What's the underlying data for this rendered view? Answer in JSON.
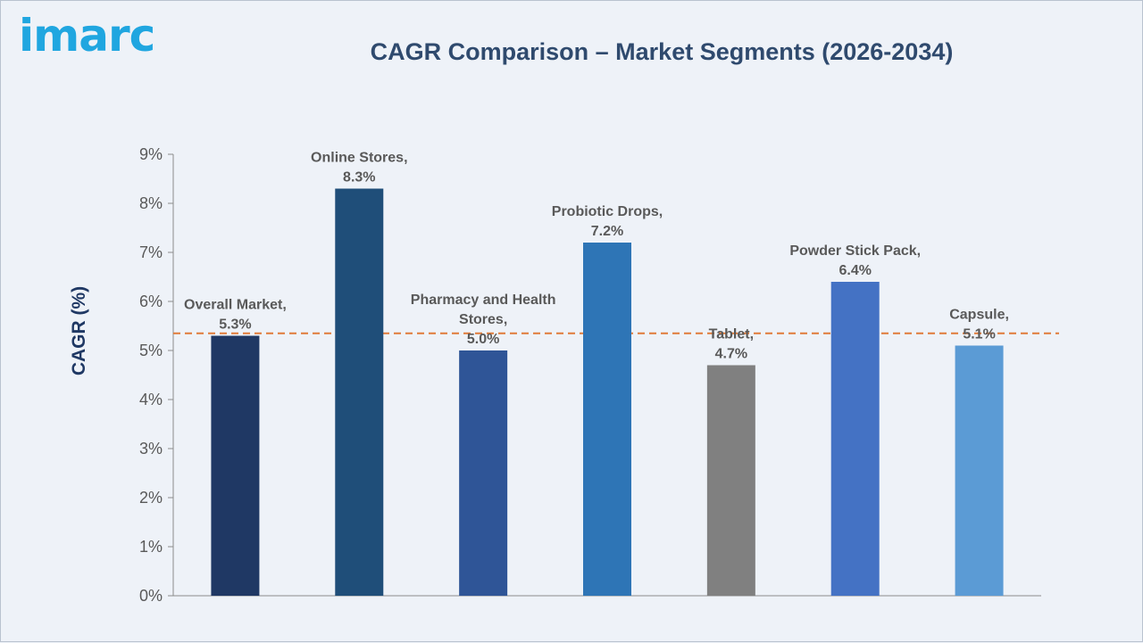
{
  "brand": {
    "logo_text": "imarc",
    "color": "#20a6e0"
  },
  "chart_data": {
    "type": "bar",
    "title": "CAGR Comparison – Market Segments (2026-2034)",
    "ylabel": "CAGR (%)",
    "xlabel": "",
    "ylim": [
      0,
      9
    ],
    "yticks": [
      "0%",
      "1%",
      "2%",
      "3%",
      "4%",
      "5%",
      "6%",
      "7%",
      "8%",
      "9%"
    ],
    "categories": [
      "Overall Market",
      "Online Stores",
      "Pharmacy and Health Stores",
      "Probiotic Drops",
      "Tablet",
      "Powder Stick Pack",
      "Capsule"
    ],
    "values": [
      5.3,
      8.3,
      5.0,
      7.2,
      4.7,
      6.4,
      5.1
    ],
    "data_labels": [
      [
        "Overall Market,",
        "5.3%"
      ],
      [
        "Online Stores,",
        "8.3%"
      ],
      [
        "Pharmacy and Health",
        "Stores,",
        "5.0%"
      ],
      [
        "Probiotic Drops,",
        "7.2%"
      ],
      [
        "Tablet,",
        "4.7%"
      ],
      [
        "Powder Stick Pack,",
        "6.4%"
      ],
      [
        "Capsule,",
        "5.1%"
      ]
    ],
    "colors": [
      "#1f3864",
      "#1f4e79",
      "#2f5597",
      "#2e75b6",
      "#808080",
      "#4472c4",
      "#5b9bd5"
    ],
    "reference_line": {
      "value": 5.35,
      "color": "#e07b39",
      "style": "dashed"
    },
    "grid": false,
    "legend": "none"
  }
}
